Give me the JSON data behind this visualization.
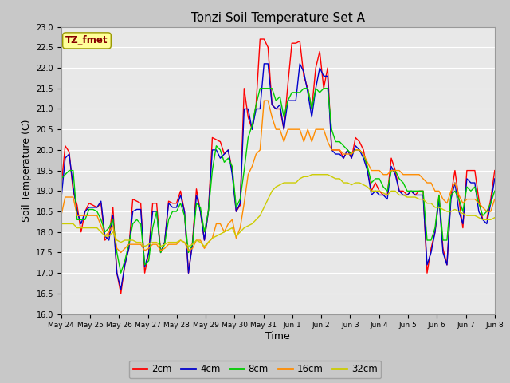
{
  "title": "Tonzi Soil Temperature Set A",
  "xlabel": "Time",
  "ylabel": "Soil Temperature (C)",
  "ylim": [
    16.0,
    23.0
  ],
  "yticks": [
    16.0,
    16.5,
    17.0,
    17.5,
    18.0,
    18.5,
    19.0,
    19.5,
    20.0,
    20.5,
    21.0,
    21.5,
    22.0,
    22.5,
    23.0
  ],
  "xtick_labels": [
    "May 24",
    "May 25",
    "May 26",
    "May 27",
    "May 28",
    "May 29",
    "May 30",
    "May 31",
    "Jun 1",
    "Jun 2",
    "Jun 3",
    "Jun 4",
    "Jun 5",
    "Jun 6",
    "Jun 7",
    "Jun 8"
  ],
  "legend_label": "TZ_fmet",
  "legend_entries": [
    "2cm",
    "4cm",
    "8cm",
    "16cm",
    "32cm"
  ],
  "colors": [
    "#ff0000",
    "#0000cc",
    "#00cc00",
    "#ff8c00",
    "#cccc00"
  ],
  "fig_background": "#c8c8c8",
  "plot_background": "#e8e8e8",
  "grid_color": "#ffffff",
  "annotation_box_color": "#ffff99",
  "annotation_text_color": "#880000",
  "series_2cm": [
    19.1,
    20.1,
    19.95,
    19.0,
    18.65,
    18.0,
    18.5,
    18.7,
    18.65,
    18.6,
    18.7,
    17.8,
    17.9,
    18.6,
    17.0,
    16.5,
    17.2,
    17.6,
    18.8,
    18.75,
    18.7,
    17.0,
    17.5,
    18.7,
    18.7,
    17.5,
    17.75,
    18.75,
    18.7,
    18.7,
    19.0,
    18.5,
    17.0,
    17.75,
    19.05,
    18.5,
    17.8,
    18.5,
    20.3,
    20.25,
    20.2,
    19.9,
    20.0,
    19.5,
    18.5,
    18.65,
    21.5,
    20.8,
    20.5,
    21.1,
    22.7,
    22.7,
    22.5,
    21.1,
    21.0,
    21.0,
    20.5,
    21.6,
    22.6,
    22.6,
    22.65,
    21.8,
    21.5,
    21.0,
    22.0,
    22.4,
    21.5,
    22.0,
    20.0,
    20.0,
    20.0,
    19.8,
    20.0,
    19.8,
    20.3,
    20.2,
    20.0,
    19.5,
    19.0,
    19.2,
    19.0,
    18.9,
    18.9,
    19.8,
    19.5,
    19.0,
    19.0,
    18.9,
    19.0,
    18.9,
    19.0,
    19.0,
    17.0,
    17.6,
    18.0,
    18.9,
    17.6,
    17.2,
    18.9,
    19.5,
    18.8,
    18.1,
    19.5,
    19.5,
    19.5,
    18.8,
    18.3,
    18.3,
    18.8,
    19.5
  ],
  "series_4cm": [
    18.8,
    19.8,
    19.9,
    19.1,
    18.5,
    18.2,
    18.5,
    18.6,
    18.6,
    18.6,
    18.75,
    17.9,
    17.8,
    18.4,
    17.0,
    16.6,
    17.2,
    17.6,
    18.5,
    18.55,
    18.55,
    17.15,
    17.5,
    18.5,
    18.5,
    17.5,
    17.75,
    18.7,
    18.6,
    18.6,
    18.9,
    18.5,
    17.0,
    17.7,
    18.9,
    18.5,
    17.8,
    18.5,
    20.0,
    20.0,
    19.8,
    19.9,
    20.0,
    19.4,
    18.5,
    18.7,
    21.0,
    21.0,
    20.5,
    21.0,
    21.0,
    22.1,
    22.1,
    21.1,
    21.0,
    21.1,
    20.5,
    21.2,
    21.2,
    21.2,
    22.1,
    21.9,
    21.4,
    20.8,
    21.5,
    22.0,
    21.8,
    21.8,
    20.0,
    19.9,
    19.9,
    19.8,
    20.0,
    19.8,
    20.1,
    20.0,
    19.8,
    19.5,
    18.9,
    19.0,
    18.9,
    18.9,
    18.8,
    19.6,
    19.4,
    19.0,
    18.9,
    18.9,
    19.0,
    18.9,
    18.9,
    18.9,
    17.2,
    17.5,
    18.0,
    18.8,
    17.5,
    17.2,
    18.8,
    19.2,
    18.5,
    18.2,
    19.3,
    19.2,
    19.2,
    18.5,
    18.3,
    18.2,
    18.7,
    19.3
  ],
  "series_8cm": [
    19.3,
    19.4,
    19.5,
    19.5,
    18.3,
    18.3,
    18.3,
    18.55,
    18.55,
    18.5,
    18.3,
    18.0,
    18.1,
    18.3,
    17.5,
    17.0,
    17.3,
    17.7,
    18.2,
    18.3,
    18.2,
    17.2,
    17.3,
    18.1,
    18.5,
    17.5,
    17.7,
    18.3,
    18.5,
    18.5,
    18.7,
    18.4,
    17.5,
    17.7,
    18.7,
    18.6,
    18.0,
    18.5,
    19.5,
    20.1,
    20.0,
    19.7,
    19.8,
    19.6,
    18.6,
    18.8,
    19.5,
    20.3,
    20.6,
    21.1,
    21.5,
    21.5,
    21.5,
    21.5,
    21.2,
    21.3,
    20.8,
    21.2,
    21.4,
    21.4,
    21.4,
    21.5,
    21.5,
    21.0,
    21.5,
    21.4,
    21.5,
    21.5,
    20.5,
    20.2,
    20.2,
    20.1,
    20.0,
    19.9,
    20.0,
    20.0,
    19.9,
    19.6,
    19.2,
    19.3,
    19.3,
    19.1,
    19.0,
    19.5,
    19.5,
    19.3,
    19.2,
    19.0,
    19.0,
    19.0,
    19.0,
    19.0,
    17.8,
    17.8,
    18.1,
    18.9,
    17.8,
    17.8,
    18.9,
    19.0,
    18.8,
    18.5,
    19.1,
    19.0,
    19.1,
    18.7,
    18.4,
    18.5,
    18.7,
    19.0
  ],
  "series_16cm": [
    18.4,
    18.85,
    18.85,
    18.85,
    18.4,
    18.4,
    18.4,
    18.4,
    18.4,
    18.4,
    18.15,
    17.9,
    18.0,
    18.15,
    17.6,
    17.5,
    17.6,
    17.7,
    17.7,
    17.7,
    17.7,
    17.55,
    17.6,
    17.7,
    17.7,
    17.55,
    17.6,
    17.7,
    17.7,
    17.7,
    17.8,
    17.75,
    17.55,
    17.6,
    17.8,
    17.8,
    17.6,
    17.75,
    17.85,
    18.2,
    18.2,
    18.0,
    18.2,
    18.3,
    17.85,
    18.1,
    18.7,
    19.4,
    19.6,
    19.9,
    20.0,
    21.2,
    21.2,
    20.8,
    20.5,
    20.5,
    20.2,
    20.5,
    20.5,
    20.5,
    20.5,
    20.2,
    20.5,
    20.2,
    20.5,
    20.5,
    20.5,
    20.2,
    20.0,
    20.0,
    20.0,
    19.9,
    19.9,
    19.9,
    20.0,
    20.0,
    19.9,
    19.7,
    19.5,
    19.5,
    19.5,
    19.4,
    19.4,
    19.5,
    19.5,
    19.5,
    19.4,
    19.4,
    19.4,
    19.4,
    19.4,
    19.3,
    19.2,
    19.2,
    19.0,
    19.0,
    18.8,
    18.7,
    19.0,
    19.2,
    18.9,
    18.7,
    18.8,
    18.8,
    18.8,
    18.7,
    18.6,
    18.5,
    18.5,
    18.8
  ],
  "series_32cm": [
    18.2,
    18.2,
    18.2,
    18.2,
    18.1,
    18.1,
    18.1,
    18.1,
    18.1,
    18.1,
    18.0,
    17.9,
    17.9,
    18.0,
    17.8,
    17.75,
    17.8,
    17.8,
    17.8,
    17.75,
    17.75,
    17.65,
    17.7,
    17.75,
    17.75,
    17.65,
    17.7,
    17.75,
    17.75,
    17.75,
    17.8,
    17.75,
    17.65,
    17.7,
    17.8,
    17.75,
    17.65,
    17.75,
    17.85,
    17.9,
    17.95,
    18.0,
    18.05,
    18.1,
    17.9,
    18.0,
    18.1,
    18.15,
    18.2,
    18.3,
    18.4,
    18.6,
    18.8,
    19.0,
    19.1,
    19.15,
    19.2,
    19.2,
    19.2,
    19.2,
    19.3,
    19.35,
    19.35,
    19.4,
    19.4,
    19.4,
    19.4,
    19.4,
    19.35,
    19.3,
    19.3,
    19.2,
    19.2,
    19.15,
    19.2,
    19.2,
    19.15,
    19.1,
    19.0,
    19.0,
    19.0,
    18.95,
    18.9,
    19.0,
    19.0,
    18.9,
    18.9,
    18.85,
    18.85,
    18.85,
    18.8,
    18.8,
    18.7,
    18.7,
    18.6,
    18.6,
    18.55,
    18.5,
    18.5,
    18.55,
    18.5,
    18.45,
    18.4,
    18.4,
    18.4,
    18.35,
    18.3,
    18.3,
    18.3,
    18.35
  ]
}
